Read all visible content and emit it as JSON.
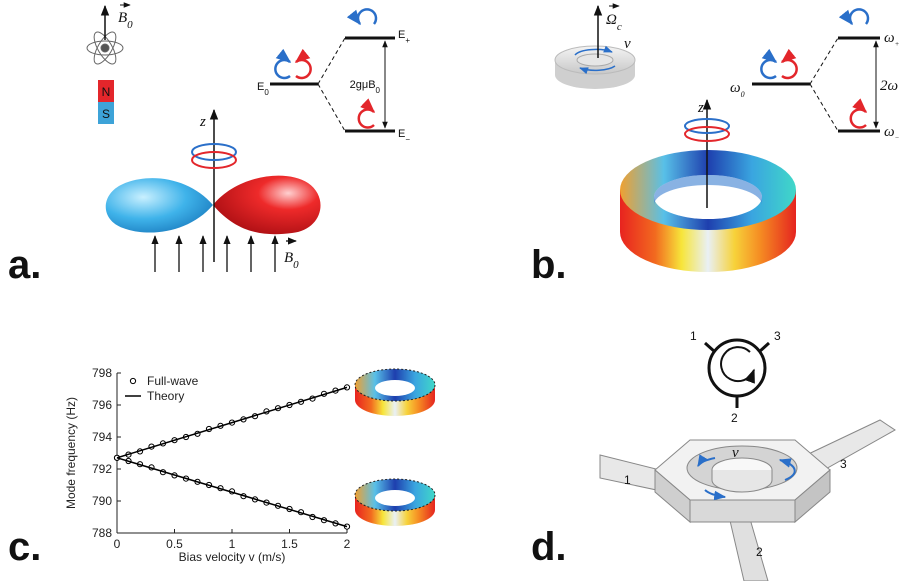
{
  "panel_labels": [
    "a.",
    "b.",
    "c.",
    "d."
  ],
  "panel_a": {
    "field_top": {
      "main": "B",
      "sub": "0"
    },
    "magnet": [
      "N",
      "S"
    ],
    "axis": "z",
    "levels": [
      {
        "main": "E",
        "sub": "0"
      },
      {
        "main": "E",
        "sub": "+"
      },
      {
        "main": "E",
        "sub": "−"
      }
    ],
    "splitting": {
      "main": "2gμB",
      "sub": "0"
    },
    "field_bottom": {
      "main": "B",
      "sub": "0"
    }
  },
  "panel_b": {
    "rotation": {
      "main": "Ω",
      "sub": "c"
    },
    "velocity": "v",
    "axis": "z",
    "levels": [
      {
        "main": "ω",
        "sub": "0"
      },
      {
        "main": "ω",
        "sub": "+"
      },
      {
        "main": "ω",
        "sub": "−"
      }
    ],
    "splitting": "2ω"
  },
  "chart_data": {
    "type": "scatter",
    "xlabel": "Bias velocity v (m/s)",
    "ylabel": "Mode frequency (Hz)",
    "xlim": [
      0,
      2
    ],
    "ylim": [
      788,
      798
    ],
    "xticks": [
      0,
      0.5,
      1,
      1.5,
      2
    ],
    "yticks": [
      788,
      790,
      792,
      794,
      796,
      798
    ],
    "legend": "upper left",
    "series": [
      {
        "name": "Full-wave",
        "color": "#000000",
        "marker": "circle",
        "branches": [
          {
            "x": [
              0,
              0.1,
              0.2,
              0.3,
              0.4,
              0.5,
              0.6,
              0.7,
              0.8,
              0.9,
              1,
              1.1,
              1.2,
              1.3,
              1.4,
              1.5,
              1.6,
              1.7,
              1.8,
              1.9,
              2
            ],
            "values": [
              792.7,
              792.9,
              793.1,
              793.4,
              793.6,
              793.8,
              794.0,
              794.2,
              794.5,
              794.7,
              794.9,
              795.1,
              795.3,
              795.6,
              795.8,
              796.0,
              796.2,
              796.4,
              796.7,
              796.9,
              797.1
            ]
          },
          {
            "x": [
              0,
              0.1,
              0.2,
              0.3,
              0.4,
              0.5,
              0.6,
              0.7,
              0.8,
              0.9,
              1,
              1.1,
              1.2,
              1.3,
              1.4,
              1.5,
              1.6,
              1.7,
              1.8,
              1.9,
              2
            ],
            "values": [
              792.7,
              792.5,
              792.3,
              792.1,
              791.8,
              791.6,
              791.4,
              791.2,
              791.0,
              790.8,
              790.6,
              790.3,
              790.1,
              789.9,
              789.7,
              789.5,
              789.3,
              789.0,
              788.8,
              788.6,
              788.4
            ]
          }
        ]
      },
      {
        "name": "Theory",
        "color": "#000000",
        "marker": "line",
        "branches": [
          {
            "x": [
              0,
              2
            ],
            "values": [
              792.7,
              797.1
            ]
          },
          {
            "x": [
              0,
              2
            ],
            "values": [
              792.7,
              788.4
            ]
          }
        ]
      }
    ]
  },
  "panel_d": {
    "ports": [
      "1",
      "2",
      "3"
    ],
    "device_ports": [
      "1",
      "3",
      "2"
    ],
    "velocity": "v"
  }
}
